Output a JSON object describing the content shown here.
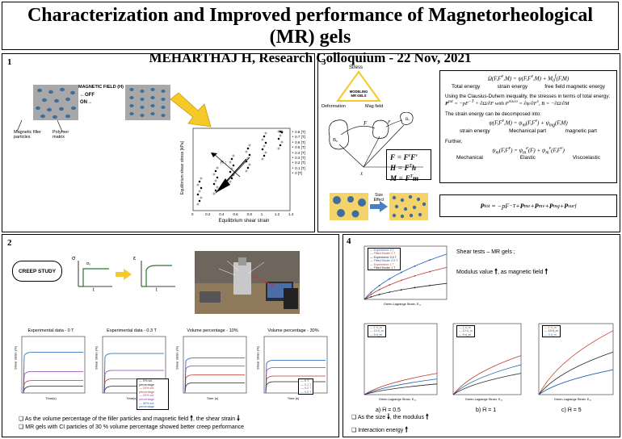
{
  "header": {
    "title": "Characterization and Improved performance of Magnetorheological (MR) gels",
    "subtitle": "MEHARTHAJ H, Research Colloquium - 22 Nov, 2021"
  },
  "panel1": {
    "number": "1",
    "field_label": "MAGNETIC FIELD (H)",
    "off_label": "←OFF",
    "on_label": "ON→",
    "magnetic_particles_label": "Magnetic filler particles",
    "polymer_matrix_label": "Polymer matrix",
    "chart_data": {
      "type": "scatter",
      "xlabel": "Equilibrium shear strain",
      "ylabel": "Equilibrium shear stress [kPa]",
      "xlim": [
        0,
        1.4
      ],
      "x_ticks": [
        "0",
        "0.2",
        "0.4",
        "0.6",
        "0.8",
        "1",
        "1.2",
        "1.4"
      ],
      "annotation": "H ↑",
      "legend": [
        "0.8 [T]",
        "0.7 [T]",
        "0.6 [T]",
        "0.5 [T]",
        "0.4 [T]",
        "0.3 [T]",
        "0.2 [T]",
        "0.1 [T]",
        "0 [T]"
      ],
      "legend_placement": "right"
    }
  },
  "panel2": {
    "number": "2",
    "creep_label": "CREEP STUDY",
    "sigma": "σ",
    "sigma0": "σ₀",
    "epsilon": "ε",
    "t": "t",
    "charts": [
      {
        "title": "Experimental data - 0 T",
        "ylabel": "Shear strain (%)",
        "xlabel": "Time(s)"
      },
      {
        "title": "Experimental data - 0.3 T",
        "ylabel": "Shear strain (%)",
        "xlabel": "Time(s)",
        "legend": [
          "0% vol percentage",
          "10% vol percentage",
          "20% vol percentage",
          "30% vol percentage"
        ]
      },
      {
        "title": "Volume percentage - 10%",
        "ylabel": "Shear strain (%)",
        "xlabel": "Time (s)"
      },
      {
        "title": "Volume percentage - 30%",
        "ylabel": "Shear strain (%)",
        "xlabel": "Time (s)",
        "legend": [
          "0 T",
          "0.1 T",
          "0.2 T",
          "0.3 T"
        ]
      }
    ],
    "bullets": [
      "As the volume percentage of the filler particles and magnetic field",
      ", the shear strain",
      "MR gels with CI particles of 30 % volume percentage showed better creep performance"
    ]
  },
  "panel3": {
    "number": "3",
    "stress": "Stress",
    "modeling": "MODELING MR GELS",
    "deformation": "Deformation",
    "magfield": "Mag field",
    "total_energy_label": "Total energy",
    "strain_energy_label": "strain energy",
    "free_field_label": "free field magnetic energy",
    "clausius_text": "Using the Clausius-Duhem inequality, the stresses in terms of total energy:",
    "decompose_text": "The strain energy can be decomposed into:",
    "strain_energy2": "strain energy",
    "mechanical_part": "Mechanical part",
    "magnetic_part": "magnetic part",
    "further": "Further,",
    "mechanical": "Mechanical",
    "elastic": "Elastic",
    "viscoelastic": "Viscoelastic",
    "size_effect": "Size Effect"
  },
  "panel4": {
    "number": "4",
    "shear_tests": "Shear tests – MR gels ;",
    "modulus_text": "Modulus value",
    "as_field": ", as magnetic field",
    "legend_top": [
      "Experiment: 0 T",
      "Fitted Model: 0 T",
      "Experiment: 0.5 T",
      "Fitted Model: 0.5 T",
      "Experiment: 1 T",
      "Fitted Model: 1 T"
    ],
    "legend_size": [
      "1 d_m",
      "10 d_m",
      "0 d_m"
    ],
    "xlabel": "Green-Lagrange Strain, E₁₂",
    "caption_a": "a) H̄ = 0.5",
    "caption_b": "b) H̄ = 1",
    "caption_c": "c) H̄ = 5",
    "size_text": "As the size",
    "modulus_word": ", the modulus",
    "interaction": "Interaction energy"
  }
}
